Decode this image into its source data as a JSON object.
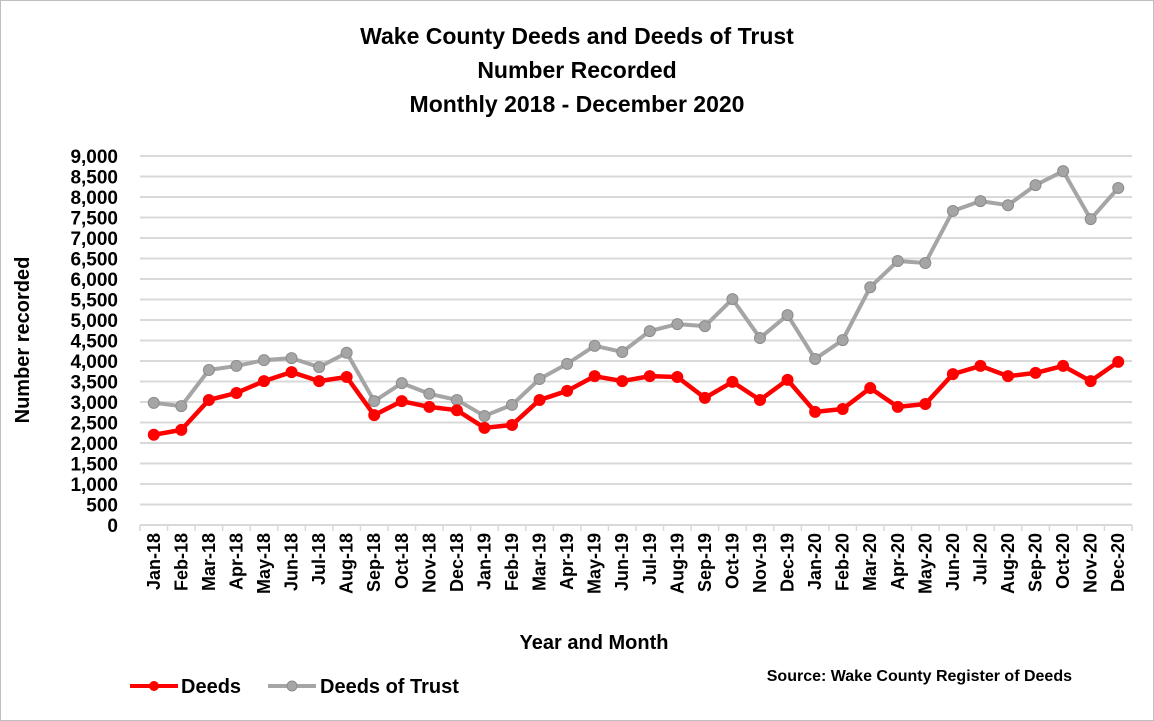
{
  "chart_data": {
    "type": "line",
    "title": [
      "Wake County Deeds and Deeds of Trust",
      "Number Recorded",
      "Monthly 2018 - December 2020"
    ],
    "xlabel": "Year and Month",
    "ylabel": "Number recorded",
    "ylim": [
      0,
      9000
    ],
    "ystep": 500,
    "yticks": [
      "0",
      "500",
      "1,000",
      "1,500",
      "2,000",
      "2,500",
      "3,000",
      "3,500",
      "4,000",
      "4,500",
      "5,000",
      "5,500",
      "6,000",
      "6,500",
      "7,000",
      "7,500",
      "8,000",
      "8,500",
      "9,000"
    ],
    "grid": true,
    "legend_position": "bottom-left",
    "source": "Source: Wake County Register of Deeds",
    "categories": [
      "Jan-18",
      "Feb-18",
      "Mar-18",
      "Apr-18",
      "May-18",
      "Jun-18",
      "Jul-18",
      "Aug-18",
      "Sep-18",
      "Oct-18",
      "Nov-18",
      "Dec-18",
      "Jan-19",
      "Feb-19",
      "Mar-19",
      "Apr-19",
      "May-19",
      "Jun-19",
      "Jul-19",
      "Aug-19",
      "Sep-19",
      "Oct-19",
      "Nov-19",
      "Dec-19",
      "Jan-20",
      "Feb-20",
      "Mar-20",
      "Apr-20",
      "May-20",
      "Jun-20",
      "Jul-20",
      "Aug-20",
      "Sep-20",
      "Oct-20",
      "Nov-20",
      "Dec-20"
    ],
    "series": [
      {
        "name": "Deeds",
        "color": "#ff0000",
        "values": [
          2200,
          2320,
          3050,
          3220,
          3510,
          3730,
          3510,
          3610,
          2680,
          3020,
          2880,
          2800,
          2370,
          2440,
          3050,
          3270,
          3630,
          3510,
          3630,
          3610,
          3100,
          3490,
          3050,
          3540,
          2760,
          2830,
          3340,
          2880,
          2950,
          3680,
          3880,
          3630,
          3710,
          3880,
          3510,
          3980
        ]
      },
      {
        "name": "Deeds of Trust",
        "color": "#a5a5a5",
        "values": [
          2980,
          2900,
          3780,
          3880,
          4020,
          4070,
          3850,
          4200,
          3020,
          3460,
          3200,
          3050,
          2660,
          2930,
          3560,
          3930,
          4370,
          4220,
          4730,
          4900,
          4850,
          5510,
          4560,
          5120,
          4050,
          4510,
          5800,
          6440,
          6390,
          7660,
          7900,
          7800,
          8290,
          8630,
          7460,
          8220
        ]
      }
    ]
  }
}
